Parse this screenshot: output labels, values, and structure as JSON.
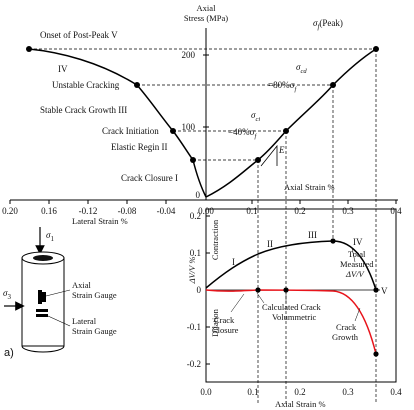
{
  "figure": {
    "top_chart": {
      "y_axis_title_line1": "Axial",
      "y_axis_title_line2": "Stress (MPa)",
      "y_ticks": [
        "200",
        "100",
        "0"
      ],
      "x_ticks": [
        "0.20",
        "0.16",
        "-0.12",
        "-0.08",
        "-0.04",
        "0.00",
        "0.1",
        "0.2",
        "0.3",
        "0.4"
      ],
      "lateral_strain_label": "Lateral Strain %",
      "axial_strain_label": "Axial Strain %",
      "stage_labels": {
        "onset": "Onset of Post-Peak",
        "onset_numeral": "V",
        "iv": "IV",
        "unstable": "Unstable Cracking",
        "stable": "Stable Crack Growth",
        "stable_numeral": "III",
        "initiation": "Crack Initiation",
        "elastic": "Elastic Regin",
        "elastic_numeral": "II",
        "closure": "Crack Closure",
        "closure_numeral": "I"
      },
      "sigma_labels": {
        "peak_sym": "σ",
        "peak_sub": "f",
        "peak_text": "(Peak)",
        "cd_sym": "σ",
        "cd_sub": "cd",
        "cd_ratio": "=80%σ",
        "cd_ratio_sub": "f",
        "ci_sym": "σ",
        "ci_sub": "ci",
        "ci_ratio": "=40%σ",
        "ci_ratio_sub": "f",
        "e_label": "E"
      }
    },
    "sample": {
      "sigma1_sym": "σ",
      "sigma1_sub": "1",
      "sigma3_sym": "σ",
      "sigma3_sub": "3",
      "axial_gauge_1": "Axial",
      "axial_gauge_2": "Strain Gauge",
      "lateral_gauge_1": "Lateral",
      "lateral_gauge_2": "Strain Gauge",
      "panel_label": "a)"
    },
    "bottom_chart": {
      "y_ticks": [
        "0.2",
        "0.1",
        "0",
        "-0.1",
        "-0.2"
      ],
      "x_ticks": [
        "0.0",
        "0.1",
        "0.2",
        "0.3",
        "0.4"
      ],
      "x_label": "Axial Strain %",
      "y_label": "ΔV/V %",
      "contraction": "Contraction",
      "dilation": "Dilation",
      "numerals": [
        "I",
        "II",
        "III",
        "IV",
        "V"
      ],
      "total_1": "Total",
      "total_2": "Measured",
      "total_3": "ΔV/V",
      "calc_1": "Calculated Crack",
      "calc_2": "Volummetric",
      "closure_1": "Crack",
      "closure_2": "Closure",
      "growth_1": "Crack",
      "growth_2": "Growth"
    }
  },
  "colors": {
    "curve": "#000000",
    "crack_curve": "#e8141b",
    "axis": "#000000"
  }
}
